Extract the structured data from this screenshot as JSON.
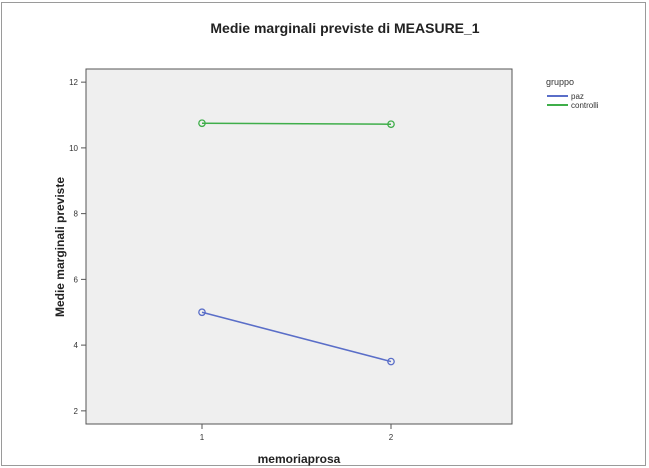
{
  "chart_data": {
    "type": "line",
    "title": "Medie marginali previste di MEASURE_1",
    "xlabel": "memoriaprosa",
    "ylabel": "Medie marginali previste",
    "categories": [
      "1",
      "2"
    ],
    "yticks": [
      "2",
      "4",
      "6",
      "8",
      "10",
      "12"
    ],
    "ylim": [
      1.6,
      12.4
    ],
    "grid": false,
    "legend_title": "gruppo",
    "legend_position": "top-right",
    "series": [
      {
        "name": "paz",
        "values": [
          5.0,
          3.5
        ],
        "color": "#5a6ec8"
      },
      {
        "name": "controlli",
        "values": [
          10.75,
          10.72
        ],
        "color": "#3fae4a"
      }
    ],
    "plot_background": "#efefef"
  }
}
